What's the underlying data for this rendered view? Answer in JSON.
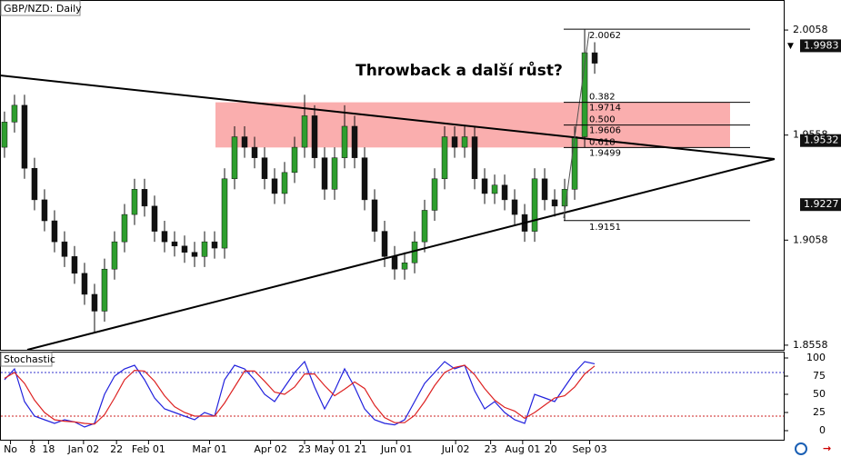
{
  "chart_data": [
    {
      "type": "candlestick",
      "title": "GBP/NZD: Daily",
      "annotation": "Throwback a další růst?",
      "xlim": [
        -0.45,
        77.9
      ],
      "xticks": [
        {
          "value": 0.6,
          "label": "No"
        },
        {
          "value": 2.8,
          "label": "8"
        },
        {
          "value": 4.4,
          "label": "18"
        },
        {
          "value": 7.9,
          "label": "Jan 02"
        },
        {
          "value": 11.2,
          "label": "22"
        },
        {
          "value": 14.4,
          "label": "Feb 01"
        },
        {
          "value": 20.5,
          "label": "Mar 01"
        },
        {
          "value": 26.6,
          "label": "Apr 02"
        },
        {
          "value": 30,
          "label": "23"
        },
        {
          "value": 32.8,
          "label": "May 01"
        },
        {
          "value": 35.6,
          "label": "21"
        },
        {
          "value": 39.2,
          "label": "Jun 01"
        },
        {
          "value": 45.1,
          "label": "Jul 02"
        },
        {
          "value": 48.6,
          "label": "23"
        },
        {
          "value": 51.8,
          "label": "Aug 01"
        },
        {
          "value": 54.6,
          "label": "20"
        },
        {
          "value": 58.5,
          "label": "Sep 03"
        }
      ],
      "ylim": [
        1.8536,
        2.0201
      ],
      "yticks": [
        2.0058,
        1.9558,
        1.9058,
        1.8558
      ],
      "colors": {
        "up": "#2e9e2e",
        "down": "#111111"
      },
      "open": [
        1.95,
        1.962,
        1.97,
        1.94,
        1.925,
        1.915,
        1.905,
        1.898,
        1.89,
        1.88,
        1.872,
        1.892,
        1.905,
        1.918,
        1.93,
        1.922,
        1.91,
        1.905,
        1.903,
        1.9,
        1.898,
        1.905,
        1.902,
        1.935,
        1.955,
        1.95,
        1.945,
        1.935,
        1.928,
        1.938,
        1.95,
        1.965,
        1.945,
        1.93,
        1.945,
        1.96,
        1.945,
        1.925,
        1.91,
        1.898,
        1.892,
        1.895,
        1.905,
        1.92,
        1.935,
        1.955,
        1.95,
        1.955,
        1.935,
        1.928,
        1.932,
        1.925,
        1.918,
        1.91,
        1.935,
        1.925,
        1.922,
        1.93,
        1.955,
        1.995
      ],
      "high": [
        1.967,
        1.975,
        1.975,
        1.945,
        1.93,
        1.92,
        1.91,
        1.903,
        1.895,
        1.885,
        1.897,
        1.91,
        1.923,
        1.935,
        1.935,
        1.927,
        1.915,
        1.91,
        1.908,
        1.905,
        1.91,
        1.91,
        1.94,
        1.96,
        1.96,
        1.955,
        1.95,
        1.94,
        1.943,
        1.955,
        1.975,
        1.97,
        1.95,
        1.95,
        1.97,
        1.965,
        1.95,
        1.93,
        1.915,
        1.903,
        1.9,
        1.91,
        1.925,
        1.94,
        1.96,
        1.96,
        1.96,
        1.96,
        1.94,
        1.937,
        1.937,
        1.93,
        1.923,
        1.94,
        1.94,
        1.93,
        1.935,
        1.96,
        2.006,
        2.0
      ],
      "low": [
        1.945,
        1.957,
        1.935,
        1.92,
        1.91,
        1.9,
        1.893,
        1.885,
        1.875,
        1.862,
        1.867,
        1.887,
        1.9,
        1.913,
        1.917,
        1.905,
        1.9,
        1.898,
        1.895,
        1.893,
        1.893,
        1.897,
        1.897,
        1.93,
        1.945,
        1.94,
        1.93,
        1.923,
        1.923,
        1.933,
        1.945,
        1.94,
        1.925,
        1.925,
        1.94,
        1.94,
        1.92,
        1.905,
        1.893,
        1.887,
        1.887,
        1.89,
        1.9,
        1.915,
        1.93,
        1.945,
        1.945,
        1.93,
        1.923,
        1.923,
        1.92,
        1.913,
        1.905,
        1.905,
        1.92,
        1.917,
        1.915,
        1.925,
        1.95,
        1.985
      ],
      "close": [
        1.962,
        1.97,
        1.94,
        1.925,
        1.915,
        1.905,
        1.898,
        1.89,
        1.88,
        1.872,
        1.892,
        1.905,
        1.918,
        1.93,
        1.922,
        1.91,
        1.905,
        1.903,
        1.9,
        1.898,
        1.905,
        1.902,
        1.935,
        1.955,
        1.95,
        1.945,
        1.935,
        1.928,
        1.938,
        1.95,
        1.965,
        1.945,
        1.93,
        1.945,
        1.96,
        1.945,
        1.925,
        1.91,
        1.898,
        1.892,
        1.895,
        1.905,
        1.92,
        1.935,
        1.955,
        1.95,
        1.955,
        1.935,
        1.928,
        1.932,
        1.925,
        1.918,
        1.91,
        1.935,
        1.925,
        1.922,
        1.93,
        1.955,
        1.995,
        1.99
      ],
      "fib_levels": [
        {
          "ratio": "0.382",
          "price": 1.9714
        },
        {
          "ratio": "0.500",
          "price": 1.9606
        },
        {
          "ratio": "0.618",
          "price": 1.9499
        }
      ],
      "fib_extremes": [
        2.0062,
        1.9151
      ],
      "price_tags": [
        1.9983,
        1.9532,
        1.9227
      ]
    },
    {
      "type": "line",
      "title": "Stochastic",
      "ylim": [
        -13.75,
        107.5
      ],
      "yticks": [
        100,
        75,
        50,
        25,
        0
      ],
      "levels": [
        {
          "value": 80,
          "color": "#3333cc"
        },
        {
          "value": 20,
          "color": "#cc2222"
        }
      ],
      "series": [
        {
          "color": "#2222dd",
          "values": [
            70,
            85,
            40,
            20,
            15,
            10,
            15,
            12,
            5,
            10,
            50,
            75,
            85,
            90,
            70,
            45,
            30,
            25,
            20,
            15,
            25,
            20,
            70,
            90,
            85,
            70,
            50,
            40,
            60,
            80,
            95,
            60,
            30,
            55,
            85,
            60,
            30,
            15,
            10,
            8,
            15,
            40,
            65,
            80,
            95,
            85,
            90,
            55,
            30,
            40,
            25,
            15,
            10,
            50,
            45,
            40,
            60,
            80,
            95,
            92
          ]
        },
        {
          "color": "#dd2222",
          "values": [
            72,
            80,
            65,
            42,
            25,
            15,
            13,
            12,
            10,
            9,
            22,
            45,
            70,
            83,
            82,
            68,
            48,
            33,
            25,
            20,
            20,
            20,
            38,
            60,
            82,
            82,
            68,
            53,
            50,
            60,
            78,
            78,
            62,
            48,
            57,
            67,
            58,
            35,
            18,
            11,
            11,
            21,
            40,
            62,
            80,
            87,
            90,
            77,
            58,
            42,
            32,
            27,
            17,
            25,
            35,
            45,
            48,
            60,
            78,
            89
          ]
        }
      ]
    }
  ]
}
